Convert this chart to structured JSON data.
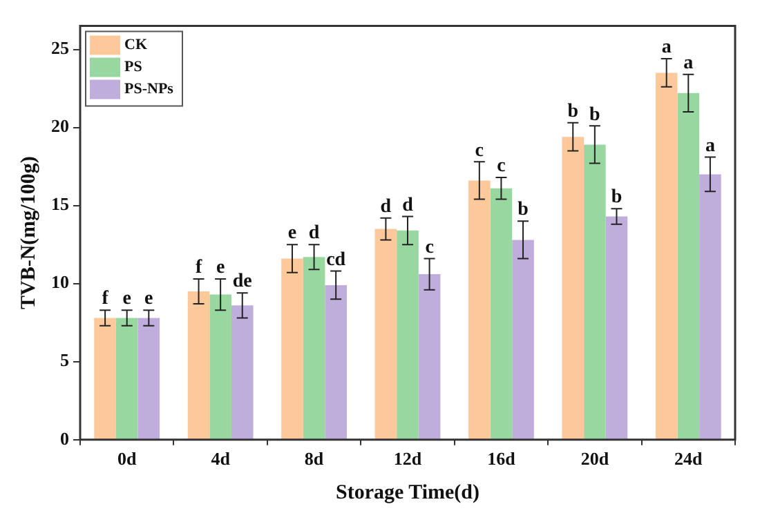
{
  "chart_data": {
    "type": "bar",
    "xlabel": "Storage Time(d)",
    "ylabel": "TVB-N(mg/100g)",
    "categories": [
      "0d",
      "4d",
      "8d",
      "12d",
      "16d",
      "20d",
      "24d"
    ],
    "series": [
      {
        "name": "CK",
        "color": "#fdc99b",
        "values": [
          7.8,
          9.5,
          11.6,
          13.5,
          16.6,
          19.4,
          23.5
        ],
        "errors": [
          0.5,
          0.8,
          0.9,
          0.7,
          1.2,
          0.9,
          0.9
        ],
        "value_labels": [
          "f",
          "f",
          "e",
          "d",
          "c",
          "b",
          "a"
        ]
      },
      {
        "name": "PS",
        "color": "#98d8a0",
        "values": [
          7.8,
          9.3,
          11.7,
          13.4,
          16.1,
          18.9,
          22.2
        ],
        "errors": [
          0.5,
          1.0,
          0.8,
          0.9,
          0.7,
          1.2,
          1.2
        ],
        "value_labels": [
          "e",
          "e",
          "d",
          "d",
          "c",
          "b",
          "a"
        ]
      },
      {
        "name": "PS-NPs",
        "color": "#bfaedb",
        "values": [
          7.8,
          8.6,
          9.9,
          10.6,
          12.8,
          14.3,
          17.0
        ],
        "errors": [
          0.5,
          0.8,
          0.9,
          1.0,
          1.2,
          0.5,
          1.1
        ],
        "value_labels": [
          "e",
          "de",
          "cd",
          "c",
          "b",
          "b",
          "a"
        ]
      }
    ],
    "ylim": [
      0,
      26.5
    ],
    "yticks": [
      0,
      5,
      10,
      15,
      20,
      25
    ],
    "grid": false,
    "legend": "top left"
  }
}
